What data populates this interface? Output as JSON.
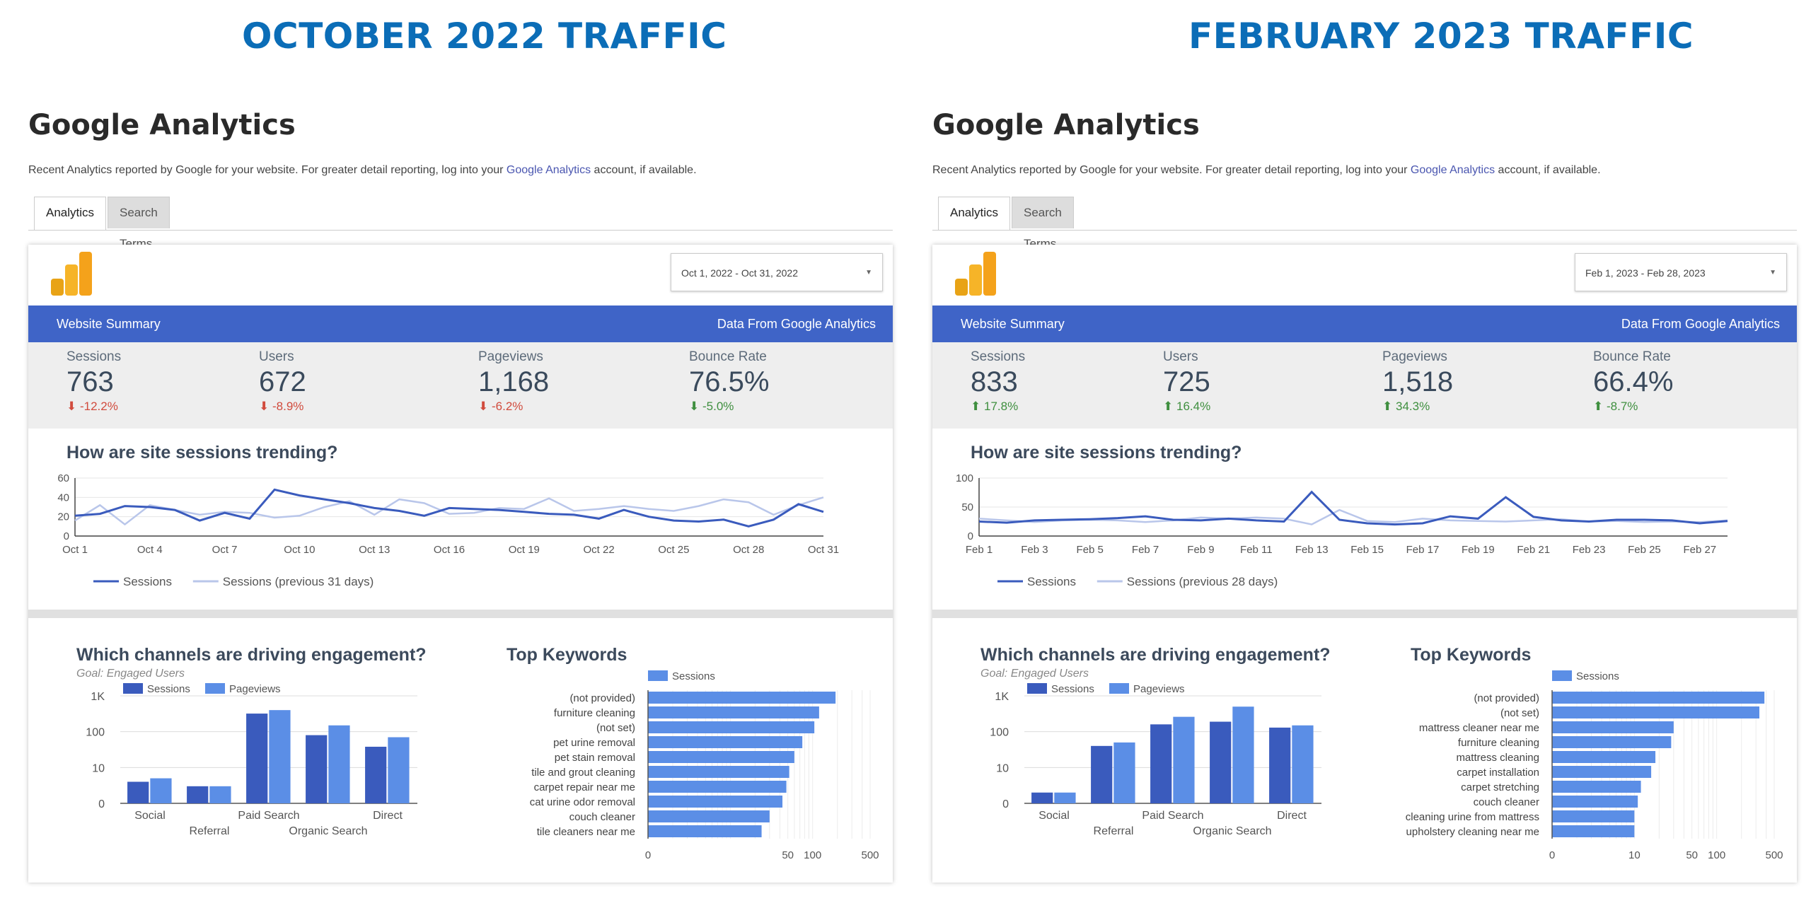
{
  "colors": {
    "heading": "#0b6db7",
    "bar_blue": "#3f64c7",
    "sessions_dark": "#3a5bbd",
    "pageviews_light": "#5b8ee6",
    "prev_line": "#b9c6ea",
    "down": "#d14b3d",
    "up": "#3f8f3f"
  },
  "panels": [
    {
      "heading": "OCTOBER 2022 TRAFFIC",
      "ga_title": "Google Analytics",
      "desc_pre": "Recent Analytics reported by Google for your website. For greater detail reporting, log into your ",
      "desc_link": "Google Analytics",
      "desc_post": " account, if available.",
      "tabs": [
        "Analytics",
        "Search Terms"
      ],
      "date_range": "Oct 1, 2022 - Oct 31, 2022",
      "bar_left": "Website Summary",
      "bar_right": "Data From Google Analytics",
      "stats": [
        {
          "label": "Sessions",
          "value": "763",
          "change": "-12.2%",
          "arrow": "⬇",
          "dir": "down"
        },
        {
          "label": "Users",
          "value": "672",
          "change": "-8.9%",
          "arrow": "⬇",
          "dir": "down"
        },
        {
          "label": "Pageviews",
          "value": "1,168",
          "change": "-6.2%",
          "arrow": "⬇",
          "dir": "down"
        },
        {
          "label": "Bounce Rate",
          "value": "76.5%",
          "change": "-5.0%",
          "arrow": "⬇",
          "dir": "up"
        }
      ],
      "trend_title": "How are site sessions trending?",
      "channels_title": "Which channels are driving engagement?",
      "channels_goal": "Goal: Engaged Users",
      "keywords_title": "Top Keywords"
    },
    {
      "heading": "FEBRUARY 2023 TRAFFIC",
      "ga_title": "Google Analytics",
      "desc_pre": "Recent Analytics reported by Google for your website. For greater detail reporting, log into your ",
      "desc_link": "Google Analytics",
      "desc_post": " account, if available.",
      "tabs": [
        "Analytics",
        "Search Terms"
      ],
      "date_range": "Feb 1, 2023 - Feb 28, 2023",
      "bar_left": "Website Summary",
      "bar_right": "Data From Google Analytics",
      "stats": [
        {
          "label": "Sessions",
          "value": "833",
          "change": "17.8%",
          "arrow": "⬆",
          "dir": "up"
        },
        {
          "label": "Users",
          "value": "725",
          "change": "16.4%",
          "arrow": "⬆",
          "dir": "up"
        },
        {
          "label": "Pageviews",
          "value": "1,518",
          "change": "34.3%",
          "arrow": "⬆",
          "dir": "up"
        },
        {
          "label": "Bounce Rate",
          "value": "66.4%",
          "change": "-8.7%",
          "arrow": "⬆",
          "dir": "up"
        }
      ],
      "trend_title": "How are site sessions trending?",
      "channels_title": "Which channels are driving engagement?",
      "channels_goal": "Goal: Engaged Users",
      "keywords_title": "Top Keywords"
    }
  ],
  "chart_data": [
    {
      "type": "line",
      "panel": 0,
      "x": [
        "Oct 1",
        "Oct 2",
        "Oct 3",
        "Oct 4",
        "Oct 5",
        "Oct 6",
        "Oct 7",
        "Oct 8",
        "Oct 9",
        "Oct 10",
        "Oct 11",
        "Oct 12",
        "Oct 13",
        "Oct 14",
        "Oct 15",
        "Oct 16",
        "Oct 17",
        "Oct 18",
        "Oct 19",
        "Oct 20",
        "Oct 21",
        "Oct 22",
        "Oct 23",
        "Oct 24",
        "Oct 25",
        "Oct 26",
        "Oct 27",
        "Oct 28",
        "Oct 29",
        "Oct 30",
        "Oct 31"
      ],
      "xticks": [
        "Oct 1",
        "Oct 4",
        "Oct 7",
        "Oct 10",
        "Oct 13",
        "Oct 16",
        "Oct 19",
        "Oct 22",
        "Oct 25",
        "Oct 28",
        "Oct 31"
      ],
      "yticks": [
        0,
        20,
        40,
        60
      ],
      "ylim": [
        0,
        60
      ],
      "series": [
        {
          "name": "Sessions",
          "values": [
            21,
            23,
            31,
            30,
            27,
            16,
            24,
            18,
            48,
            42,
            38,
            34,
            29,
            26,
            21,
            29,
            28,
            27,
            25,
            23,
            22,
            18,
            27,
            20,
            16,
            15,
            17,
            10,
            17,
            33,
            25
          ]
        },
        {
          "name": "Sessions (previous 31 days)",
          "values": [
            16,
            32,
            12,
            32,
            27,
            22,
            25,
            24,
            19,
            21,
            30,
            36,
            22,
            38,
            34,
            23,
            24,
            29,
            28,
            39,
            26,
            28,
            31,
            28,
            26,
            31,
            38,
            35,
            22,
            32,
            40
          ]
        }
      ],
      "legend": "bottom"
    },
    {
      "type": "bar",
      "panel": 0,
      "scale": "log",
      "categories": [
        "Social",
        "Referral",
        "Paid Search",
        "Organic Search",
        "Direct"
      ],
      "yticks": [
        "0",
        "10",
        "100",
        "1K"
      ],
      "series": [
        {
          "name": "Sessions",
          "values": [
            4,
            3,
            320,
            80,
            38
          ]
        },
        {
          "name": "Pageviews",
          "values": [
            5,
            3,
            400,
            150,
            70
          ]
        }
      ],
      "legend": "top"
    },
    {
      "type": "bar",
      "panel": 0,
      "orientation": "horizontal",
      "scale": "log",
      "categories": [
        "(not provided)",
        "furniture cleaning",
        "(not set)",
        "pet urine removal",
        "pet stain removal",
        "tile and grout cleaning",
        "carpet repair near me",
        "cat urine odor removal",
        "couch cleaner",
        "tile cleaners near me"
      ],
      "xticks": [
        "0",
        "50",
        "100",
        "500"
      ],
      "series": [
        {
          "name": "Sessions",
          "values": [
            190,
            120,
            105,
            75,
            60,
            52,
            48,
            43,
            30,
            24
          ]
        }
      ],
      "legend": "top"
    },
    {
      "type": "line",
      "panel": 1,
      "x": [
        "Feb 1",
        "Feb 2",
        "Feb 3",
        "Feb 4",
        "Feb 5",
        "Feb 6",
        "Feb 7",
        "Feb 8",
        "Feb 9",
        "Feb 10",
        "Feb 11",
        "Feb 12",
        "Feb 13",
        "Feb 14",
        "Feb 15",
        "Feb 16",
        "Feb 17",
        "Feb 18",
        "Feb 19",
        "Feb 20",
        "Feb 21",
        "Feb 22",
        "Feb 23",
        "Feb 24",
        "Feb 25",
        "Feb 26",
        "Feb 27",
        "Feb 28"
      ],
      "xticks": [
        "Feb 1",
        "Feb 3",
        "Feb 5",
        "Feb 7",
        "Feb 9",
        "Feb 11",
        "Feb 13",
        "Feb 15",
        "Feb 17",
        "Feb 19",
        "Feb 21",
        "Feb 23",
        "Feb 25",
        "Feb 27"
      ],
      "yticks": [
        0,
        50,
        100
      ],
      "ylim": [
        0,
        100
      ],
      "series": [
        {
          "name": "Sessions",
          "values": [
            25,
            23,
            27,
            28,
            29,
            31,
            34,
            28,
            27,
            30,
            27,
            25,
            76,
            28,
            22,
            20,
            22,
            34,
            30,
            67,
            33,
            27,
            25,
            28,
            28,
            27,
            22,
            26
          ]
        },
        {
          "name": "Sessions (previous 28 days)",
          "values": [
            30,
            27,
            24,
            27,
            28,
            27,
            24,
            27,
            32,
            30,
            32,
            30,
            20,
            45,
            26,
            24,
            30,
            27,
            26,
            25,
            27,
            29,
            25,
            26,
            24,
            25,
            24,
            27
          ]
        }
      ],
      "legend": "bottom"
    },
    {
      "type": "bar",
      "panel": 1,
      "scale": "log",
      "categories": [
        "Social",
        "Referral",
        "Paid Search",
        "Organic Search",
        "Direct"
      ],
      "yticks": [
        "0",
        "10",
        "100",
        "1K"
      ],
      "series": [
        {
          "name": "Sessions",
          "values": [
            2,
            40,
            160,
            190,
            130
          ]
        },
        {
          "name": "Pageviews",
          "values": [
            2,
            50,
            260,
            500,
            150
          ]
        }
      ],
      "legend": "top"
    },
    {
      "type": "bar",
      "panel": 1,
      "orientation": "horizontal",
      "scale": "log",
      "categories": [
        "(not provided)",
        "(not set)",
        "mattress cleaner near me",
        "furniture cleaning",
        "mattress cleaning",
        "carpet installation",
        "carpet stretching",
        "couch cleaner",
        "cleaning urine from mattress",
        "upholstery cleaning near me"
      ],
      "xticks": [
        "0",
        "10",
        "50",
        "100",
        "500"
      ],
      "series": [
        {
          "name": "Sessions",
          "values": [
            380,
            330,
            30,
            28,
            18,
            16,
            12,
            11,
            10,
            10
          ]
        }
      ],
      "legend": "top"
    }
  ]
}
